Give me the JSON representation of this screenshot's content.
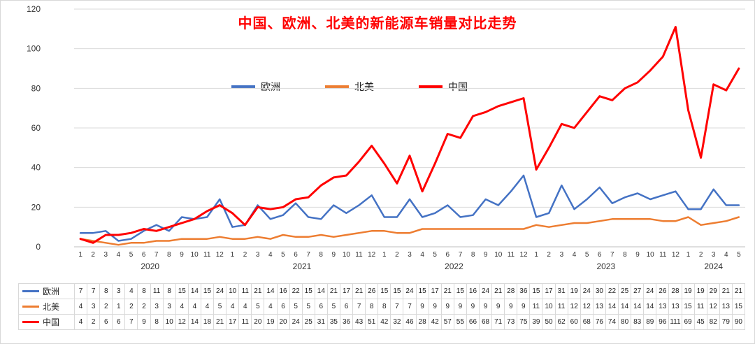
{
  "title": "中国、欧洲、北美的新能源车销量对比走势",
  "colors": {
    "title": "#FF0000",
    "grid": "#D9D9D9",
    "axis_line": "#BFBFBF",
    "axis_text": "#333333",
    "table_border": "#D9D9D9",
    "europe": "#4472C4",
    "north_america": "#ED7D31",
    "china": "#FF0000"
  },
  "legend": {
    "items": [
      "欧洲",
      "北美",
      "中国"
    ]
  },
  "chart_data": {
    "type": "line",
    "title": "中国、欧洲、北美的新能源车销量对比走势",
    "xlabel": "",
    "ylabel": "",
    "ylim": [
      0,
      120
    ],
    "y_ticks": [
      0,
      20,
      40,
      60,
      80,
      100,
      120
    ],
    "grid": true,
    "legend_position": "inside-top-center",
    "x_labels": [
      "1",
      "2",
      "3",
      "4",
      "5",
      "6",
      "7",
      "8",
      "9",
      "10",
      "11",
      "12",
      "1",
      "2",
      "3",
      "4",
      "5",
      "6",
      "7",
      "8",
      "9",
      "10",
      "11",
      "12",
      "1",
      "2",
      "3",
      "4",
      "5",
      "6",
      "7",
      "8",
      "9",
      "10",
      "11",
      "12",
      "1",
      "2",
      "3",
      "4",
      "5",
      "6",
      "7",
      "8",
      "9",
      "10",
      "11",
      "12",
      "1",
      "2",
      "3",
      "4",
      "5"
    ],
    "year_groups": [
      {
        "label": "2020",
        "count": 12
      },
      {
        "label": "2021",
        "count": 12
      },
      {
        "label": "2022",
        "count": 12
      },
      {
        "label": "2023",
        "count": 12
      },
      {
        "label": "2024",
        "count": 5
      }
    ],
    "series": [
      {
        "key": "europe",
        "name": "欧洲",
        "color": "#4472C4",
        "values": [
          7,
          7,
          8,
          3,
          4,
          8,
          11,
          8,
          15,
          14,
          15,
          24,
          10,
          11,
          21,
          14,
          16,
          22,
          15,
          14,
          21,
          17,
          21,
          26,
          15,
          15,
          24,
          15,
          17,
          21,
          15,
          16,
          24,
          21,
          28,
          36,
          15,
          17,
          31,
          19,
          24,
          30,
          22,
          25,
          27,
          24,
          26,
          28,
          19,
          19,
          29,
          21,
          21
        ]
      },
      {
        "key": "north-america",
        "name": "北美",
        "color": "#ED7D31",
        "values": [
          4,
          3,
          2,
          1,
          2,
          2,
          3,
          3,
          4,
          4,
          4,
          5,
          4,
          4,
          5,
          4,
          6,
          5,
          5,
          6,
          5,
          6,
          7,
          8,
          8,
          7,
          7,
          9,
          9,
          9,
          9,
          9,
          9,
          9,
          9,
          9,
          11,
          10,
          11,
          12,
          12,
          13,
          14,
          14,
          14,
          14,
          13,
          13,
          15,
          11,
          12,
          13,
          15
        ]
      },
      {
        "key": "china",
        "name": "中国",
        "color": "#FF0000",
        "values": [
          4,
          2,
          6,
          6,
          7,
          9,
          8,
          10,
          12,
          14,
          18,
          21,
          17,
          11,
          20,
          19,
          20,
          24,
          25,
          31,
          35,
          36,
          43,
          51,
          42,
          32,
          46,
          28,
          42,
          57,
          55,
          66,
          68,
          71,
          73,
          75,
          39,
          50,
          62,
          60,
          68,
          76,
          74,
          80,
          83,
          89,
          96,
          111,
          69,
          45,
          82,
          79,
          90
        ]
      }
    ]
  }
}
